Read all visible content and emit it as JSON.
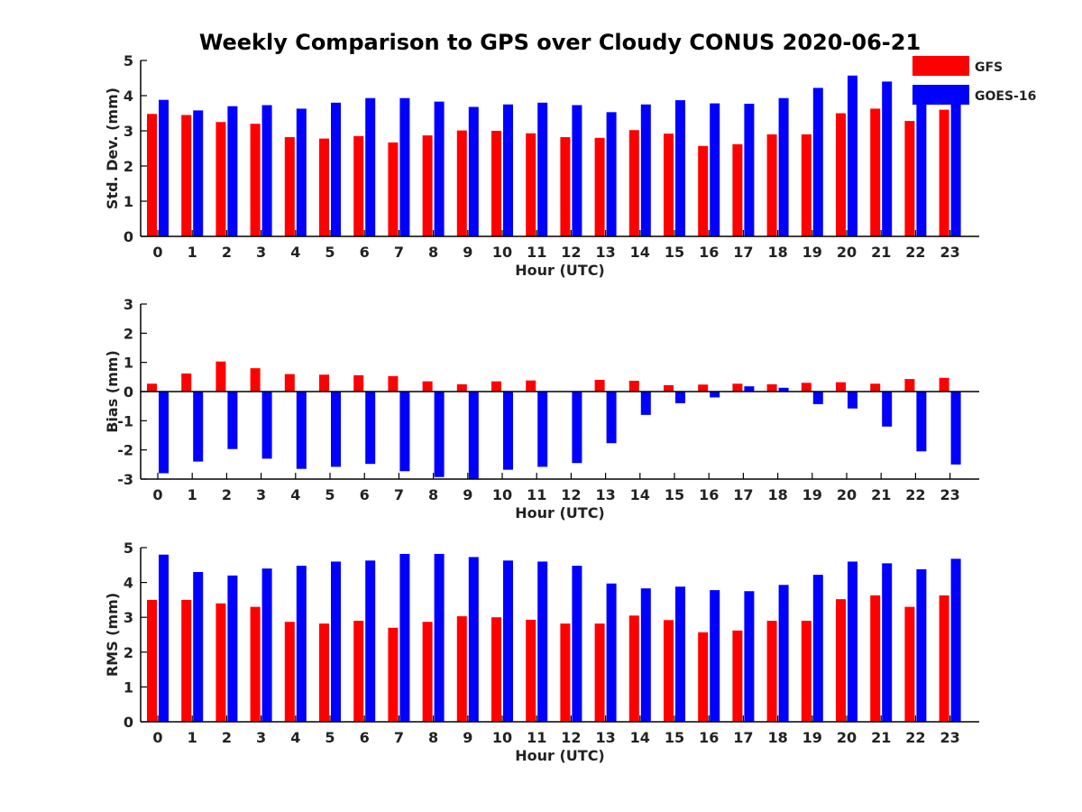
{
  "title": "Weekly Comparison to GPS over Cloudy CONUS 2020-06-21",
  "colors": {
    "GFS": "#ff0000",
    "GOES-16": "#0000ff"
  },
  "legend": {
    "placement": "top-right",
    "entries": [
      "GFS",
      "GOES-16"
    ]
  },
  "chart_data": [
    {
      "type": "bar",
      "name": "std",
      "xlabel": "Hour (UTC)",
      "ylabel": "Std. Dev. (mm)",
      "ylim": [
        0,
        5
      ],
      "yticks": [
        0,
        1,
        2,
        3,
        4,
        5
      ],
      "categories": [
        "0",
        "1",
        "2",
        "3",
        "4",
        "5",
        "6",
        "7",
        "8",
        "9",
        "10",
        "11",
        "12",
        "13",
        "14",
        "15",
        "16",
        "17",
        "18",
        "19",
        "20",
        "21",
        "22",
        "23"
      ],
      "series": [
        {
          "name": "GFS",
          "values": [
            3.48,
            3.45,
            3.25,
            3.2,
            2.82,
            2.78,
            2.85,
            2.67,
            2.87,
            3.01,
            3.0,
            2.93,
            2.82,
            2.8,
            3.02,
            2.92,
            2.57,
            2.62,
            2.9,
            2.9,
            3.5,
            3.63,
            3.28,
            3.6
          ]
        },
        {
          "name": "GOES-16",
          "values": [
            3.88,
            3.58,
            3.7,
            3.73,
            3.63,
            3.8,
            3.93,
            3.93,
            3.83,
            3.68,
            3.75,
            3.8,
            3.73,
            3.53,
            3.75,
            3.87,
            3.78,
            3.77,
            3.93,
            4.22,
            4.57,
            4.4,
            3.85,
            3.8
          ]
        }
      ]
    },
    {
      "type": "bar",
      "name": "bias",
      "xlabel": "Hour (UTC)",
      "ylabel": "Bias (mm)",
      "ylim": [
        -3,
        3
      ],
      "yticks": [
        -3,
        -2,
        -1,
        0,
        1,
        2,
        3
      ],
      "categories": [
        "0",
        "1",
        "2",
        "3",
        "4",
        "5",
        "6",
        "7",
        "8",
        "9",
        "10",
        "11",
        "12",
        "13",
        "14",
        "15",
        "16",
        "17",
        "18",
        "19",
        "20",
        "21",
        "22",
        "23"
      ],
      "series": [
        {
          "name": "GFS",
          "values": [
            0.27,
            0.62,
            1.03,
            0.8,
            0.6,
            0.58,
            0.56,
            0.53,
            0.35,
            0.25,
            0.35,
            0.38,
            0.0,
            0.4,
            0.37,
            0.22,
            0.24,
            0.27,
            0.25,
            0.3,
            0.32,
            0.27,
            0.43,
            0.47
          ]
        },
        {
          "name": "GOES-16",
          "values": [
            -2.8,
            -2.4,
            -1.97,
            -2.3,
            -2.65,
            -2.58,
            -2.48,
            -2.73,
            -2.93,
            -3.0,
            -2.68,
            -2.58,
            -2.45,
            -1.77,
            -0.8,
            -0.4,
            -0.2,
            0.18,
            0.13,
            -0.43,
            -0.58,
            -1.2,
            -2.05,
            -2.5
          ]
        }
      ]
    },
    {
      "type": "bar",
      "name": "rms",
      "xlabel": "Hour (UTC)",
      "ylabel": "RMS (mm)",
      "ylim": [
        0,
        5
      ],
      "yticks": [
        0,
        1,
        2,
        3,
        4,
        5
      ],
      "categories": [
        "0",
        "1",
        "2",
        "3",
        "4",
        "5",
        "6",
        "7",
        "8",
        "9",
        "10",
        "11",
        "12",
        "13",
        "14",
        "15",
        "16",
        "17",
        "18",
        "19",
        "20",
        "21",
        "22",
        "23"
      ],
      "series": [
        {
          "name": "GFS",
          "values": [
            3.5,
            3.5,
            3.4,
            3.3,
            2.87,
            2.82,
            2.9,
            2.7,
            2.87,
            3.03,
            3.0,
            2.93,
            2.82,
            2.82,
            3.05,
            2.92,
            2.57,
            2.62,
            2.9,
            2.9,
            3.52,
            3.63,
            3.3,
            3.63
          ]
        },
        {
          "name": "GOES-16",
          "values": [
            4.8,
            4.3,
            4.2,
            4.4,
            4.48,
            4.6,
            4.63,
            4.82,
            4.82,
            4.73,
            4.63,
            4.6,
            4.48,
            3.97,
            3.83,
            3.88,
            3.78,
            3.75,
            3.93,
            4.22,
            4.6,
            4.55,
            4.38,
            4.68
          ]
        }
      ]
    }
  ]
}
